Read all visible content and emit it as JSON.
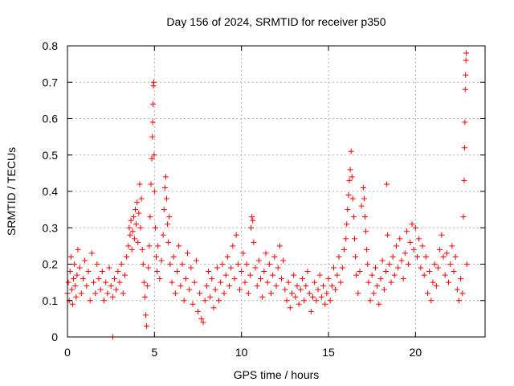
{
  "chart_data": {
    "type": "scatter",
    "title": "Day 156 of 2024, SRMTID for receiver p350",
    "xlabel": "GPS time / hours",
    "ylabel": "SRMTID / TECUs",
    "xlim": [
      0,
      24
    ],
    "ylim": [
      0,
      0.8
    ],
    "x_ticks": [
      0,
      5,
      10,
      15,
      20
    ],
    "x_tick_labels": [
      "0",
      "5",
      "10",
      "15",
      "20"
    ],
    "y_ticks": [
      0,
      0.1,
      0.2,
      0.3,
      0.4,
      0.5,
      0.6,
      0.7,
      0.8
    ],
    "y_tick_labels": [
      "0",
      "0.1",
      "0.2",
      "0.3",
      "0.4",
      "0.5",
      "0.6",
      "0.7",
      "0.8"
    ],
    "grid": true,
    "marker": "plus",
    "colors": {
      "series": "#ff0000",
      "grid": "#b0b0b0",
      "axis": "#000000"
    },
    "series": [
      {
        "name": "SRMTID",
        "points": [
          [
            0.0,
            0.12
          ],
          [
            0.05,
            0.15
          ],
          [
            0.1,
            0.1
          ],
          [
            0.15,
            0.18
          ],
          [
            0.2,
            0.22
          ],
          [
            0.25,
            0.13
          ],
          [
            0.3,
            0.09
          ],
          [
            0.35,
            0.16
          ],
          [
            0.4,
            0.2
          ],
          [
            0.45,
            0.14
          ],
          [
            0.5,
            0.11
          ],
          [
            0.55,
            0.17
          ],
          [
            0.6,
            0.24
          ],
          [
            0.7,
            0.19
          ],
          [
            0.8,
            0.12
          ],
          [
            0.9,
            0.16
          ],
          [
            1.0,
            0.21
          ],
          [
            1.1,
            0.14
          ],
          [
            1.2,
            0.18
          ],
          [
            1.3,
            0.1
          ],
          [
            1.4,
            0.23
          ],
          [
            1.5,
            0.15
          ],
          [
            1.6,
            0.12
          ],
          [
            1.7,
            0.2
          ],
          [
            1.8,
            0.16
          ],
          [
            1.9,
            0.13
          ],
          [
            2.0,
            0.18
          ],
          [
            2.1,
            0.1
          ],
          [
            2.2,
            0.15
          ],
          [
            2.3,
            0.12
          ],
          [
            2.4,
            0.19
          ],
          [
            2.5,
            0.14
          ],
          [
            2.6,
            0.11
          ],
          [
            2.7,
            0.16
          ],
          [
            2.8,
            0.13
          ],
          [
            2.9,
            0.18
          ],
          [
            3.0,
            0.15
          ],
          [
            3.1,
            0.2
          ],
          [
            3.2,
            0.12
          ],
          [
            3.3,
            0.17
          ],
          [
            3.4,
            0.22
          ],
          [
            3.5,
            0.25
          ],
          [
            3.55,
            0.3
          ],
          [
            3.6,
            0.28
          ],
          [
            3.65,
            0.32
          ],
          [
            3.7,
            0.24
          ],
          [
            3.75,
            0.29
          ],
          [
            3.8,
            0.33
          ],
          [
            3.85,
            0.27
          ],
          [
            3.9,
            0.35
          ],
          [
            3.95,
            0.31
          ],
          [
            4.0,
            0.37
          ],
          [
            4.05,
            0.26
          ],
          [
            4.1,
            0.34
          ],
          [
            4.15,
            0.42
          ],
          [
            4.2,
            0.3
          ],
          [
            4.25,
            0.38
          ],
          [
            4.3,
            0.24
          ],
          [
            4.35,
            0.2
          ],
          [
            4.4,
            0.15
          ],
          [
            4.45,
            0.11
          ],
          [
            4.5,
            0.06
          ],
          [
            4.55,
            0.03
          ],
          [
            4.6,
            0.14
          ],
          [
            4.65,
            0.19
          ],
          [
            4.7,
            0.25
          ],
          [
            4.75,
            0.33
          ],
          [
            4.8,
            0.42
          ],
          [
            4.85,
            0.49
          ],
          [
            4.88,
            0.55
          ],
          [
            4.9,
            0.59
          ],
          [
            4.92,
            0.64
          ],
          [
            4.94,
            0.69
          ],
          [
            4.96,
            0.7
          ],
          [
            4.98,
            0.5
          ],
          [
            5.0,
            0.4
          ],
          [
            5.05,
            0.3
          ],
          [
            5.1,
            0.22
          ],
          [
            5.15,
            0.18
          ],
          [
            5.2,
            0.25
          ],
          [
            5.3,
            0.16
          ],
          [
            5.4,
            0.21
          ],
          [
            5.5,
            0.28
          ],
          [
            5.55,
            0.35
          ],
          [
            5.6,
            0.41
          ],
          [
            5.65,
            0.44
          ],
          [
            5.7,
            0.38
          ],
          [
            5.75,
            0.31
          ],
          [
            5.8,
            0.26
          ],
          [
            5.85,
            0.33
          ],
          [
            5.9,
            0.2
          ],
          [
            6.0,
            0.15
          ],
          [
            6.1,
            0.22
          ],
          [
            6.2,
            0.12
          ],
          [
            6.3,
            0.18
          ],
          [
            6.4,
            0.25
          ],
          [
            6.5,
            0.14
          ],
          [
            6.6,
            0.2
          ],
          [
            6.7,
            0.1
          ],
          [
            6.8,
            0.16
          ],
          [
            6.9,
            0.23
          ],
          [
            7.0,
            0.13
          ],
          [
            7.1,
            0.19
          ],
          [
            7.2,
            0.09
          ],
          [
            7.3,
            0.15
          ],
          [
            7.4,
            0.21
          ],
          [
            7.5,
            0.07
          ],
          [
            7.6,
            0.12
          ],
          [
            7.7,
            0.05
          ],
          [
            7.8,
            0.04
          ],
          [
            7.9,
            0.1
          ],
          [
            8.0,
            0.14
          ],
          [
            8.1,
            0.18
          ],
          [
            8.2,
            0.11
          ],
          [
            8.3,
            0.16
          ],
          [
            8.4,
            0.08
          ],
          [
            8.5,
            0.13
          ],
          [
            8.6,
            0.19
          ],
          [
            8.7,
            0.1
          ],
          [
            8.8,
            0.15
          ],
          [
            8.9,
            0.2
          ],
          [
            9.0,
            0.12
          ],
          [
            9.1,
            0.17
          ],
          [
            9.2,
            0.22
          ],
          [
            9.3,
            0.14
          ],
          [
            9.4,
            0.19
          ],
          [
            9.5,
            0.25
          ],
          [
            9.6,
            0.16
          ],
          [
            9.7,
            0.28
          ],
          [
            9.8,
            0.2
          ],
          [
            9.9,
            0.13
          ],
          [
            10.0,
            0.18
          ],
          [
            10.1,
            0.23
          ],
          [
            10.2,
            0.15
          ],
          [
            10.3,
            0.2
          ],
          [
            10.4,
            0.12
          ],
          [
            10.5,
            0.17
          ],
          [
            10.55,
            0.3
          ],
          [
            10.6,
            0.33
          ],
          [
            10.65,
            0.32
          ],
          [
            10.7,
            0.26
          ],
          [
            10.8,
            0.19
          ],
          [
            10.9,
            0.14
          ],
          [
            11.0,
            0.21
          ],
          [
            11.1,
            0.16
          ],
          [
            11.2,
            0.11
          ],
          [
            11.3,
            0.18
          ],
          [
            11.4,
            0.23
          ],
          [
            11.5,
            0.15
          ],
          [
            11.6,
            0.2
          ],
          [
            11.7,
            0.12
          ],
          [
            11.8,
            0.17
          ],
          [
            11.9,
            0.22
          ],
          [
            12.0,
            0.14
          ],
          [
            12.1,
            0.19
          ],
          [
            12.2,
            0.25
          ],
          [
            12.3,
            0.16
          ],
          [
            12.4,
            0.21
          ],
          [
            12.5,
            0.13
          ],
          [
            12.6,
            0.1
          ],
          [
            12.7,
            0.15
          ],
          [
            12.8,
            0.08
          ],
          [
            12.9,
            0.12
          ],
          [
            13.0,
            0.17
          ],
          [
            13.1,
            0.11
          ],
          [
            13.2,
            0.14
          ],
          [
            13.3,
            0.09
          ],
          [
            13.4,
            0.13
          ],
          [
            13.5,
            0.16
          ],
          [
            13.6,
            0.1
          ],
          [
            13.7,
            0.14
          ],
          [
            13.8,
            0.18
          ],
          [
            13.9,
            0.12
          ],
          [
            14.0,
            0.07
          ],
          [
            14.1,
            0.11
          ],
          [
            14.2,
            0.15
          ],
          [
            14.3,
            0.1
          ],
          [
            14.4,
            0.13
          ],
          [
            14.5,
            0.17
          ],
          [
            14.6,
            0.11
          ],
          [
            14.7,
            0.14
          ],
          [
            14.8,
            0.09
          ],
          [
            14.9,
            0.12
          ],
          [
            15.0,
            0.16
          ],
          [
            15.1,
            0.1
          ],
          [
            15.2,
            0.14
          ],
          [
            15.3,
            0.19
          ],
          [
            15.4,
            0.13
          ],
          [
            15.5,
            0.17
          ],
          [
            15.6,
            0.22
          ],
          [
            15.7,
            0.15
          ],
          [
            15.8,
            0.19
          ],
          [
            15.9,
            0.24
          ],
          [
            16.0,
            0.27
          ],
          [
            16.05,
            0.31
          ],
          [
            16.1,
            0.35
          ],
          [
            16.15,
            0.39
          ],
          [
            16.2,
            0.43
          ],
          [
            16.25,
            0.46
          ],
          [
            16.3,
            0.51
          ],
          [
            16.35,
            0.44
          ],
          [
            16.4,
            0.38
          ],
          [
            16.45,
            0.33
          ],
          [
            16.5,
            0.27
          ],
          [
            16.55,
            0.22
          ],
          [
            16.6,
            0.17
          ],
          [
            16.7,
            0.12
          ],
          [
            16.8,
            0.18
          ],
          [
            16.9,
            0.36
          ],
          [
            17.0,
            0.41
          ],
          [
            17.05,
            0.38
          ],
          [
            17.1,
            0.33
          ],
          [
            17.15,
            0.29
          ],
          [
            17.2,
            0.24
          ],
          [
            17.25,
            0.2
          ],
          [
            17.3,
            0.15
          ],
          [
            17.4,
            0.1
          ],
          [
            17.5,
            0.17
          ],
          [
            17.6,
            0.12
          ],
          [
            17.7,
            0.19
          ],
          [
            17.8,
            0.14
          ],
          [
            17.9,
            0.09
          ],
          [
            18.0,
            0.16
          ],
          [
            18.1,
            0.21
          ],
          [
            18.2,
            0.13
          ],
          [
            18.3,
            0.18
          ],
          [
            18.35,
            0.42
          ],
          [
            18.4,
            0.28
          ],
          [
            18.5,
            0.2
          ],
          [
            18.6,
            0.15
          ],
          [
            18.7,
            0.22
          ],
          [
            18.8,
            0.17
          ],
          [
            18.9,
            0.25
          ],
          [
            19.0,
            0.19
          ],
          [
            19.1,
            0.27
          ],
          [
            19.2,
            0.21
          ],
          [
            19.3,
            0.16
          ],
          [
            19.4,
            0.23
          ],
          [
            19.5,
            0.29
          ],
          [
            19.6,
            0.2
          ],
          [
            19.7,
            0.26
          ],
          [
            19.8,
            0.31
          ],
          [
            19.9,
            0.24
          ],
          [
            20.0,
            0.3
          ],
          [
            20.1,
            0.22
          ],
          [
            20.2,
            0.27
          ],
          [
            20.3,
            0.19
          ],
          [
            20.4,
            0.25
          ],
          [
            20.5,
            0.17
          ],
          [
            20.6,
            0.22
          ],
          [
            20.7,
            0.12
          ],
          [
            20.8,
            0.18
          ],
          [
            20.9,
            0.1
          ],
          [
            21.0,
            0.15
          ],
          [
            21.1,
            0.2
          ],
          [
            21.2,
            0.14
          ],
          [
            21.3,
            0.19
          ],
          [
            21.4,
            0.24
          ],
          [
            21.5,
            0.28
          ],
          [
            21.6,
            0.22
          ],
          [
            21.7,
            0.17
          ],
          [
            21.8,
            0.23
          ],
          [
            21.9,
            0.15
          ],
          [
            22.0,
            0.2
          ],
          [
            22.1,
            0.25
          ],
          [
            22.2,
            0.18
          ],
          [
            22.3,
            0.22
          ],
          [
            22.4,
            0.13
          ],
          [
            22.5,
            0.1
          ],
          [
            22.6,
            0.16
          ],
          [
            22.7,
            0.12
          ],
          [
            22.75,
            0.33
          ],
          [
            22.8,
            0.43
          ],
          [
            22.82,
            0.52
          ],
          [
            22.84,
            0.59
          ],
          [
            22.86,
            0.68
          ],
          [
            22.88,
            0.72
          ],
          [
            22.9,
            0.76
          ],
          [
            22.92,
            0.78
          ],
          [
            22.95,
            0.2
          ]
        ]
      }
    ],
    "extra_points": [
      [
        2.6,
        0.0
      ]
    ]
  }
}
